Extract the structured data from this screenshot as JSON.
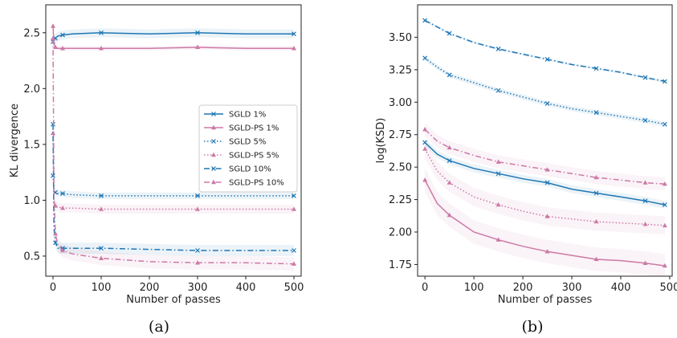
{
  "colors": {
    "blue": "#1f77b4",
    "pink": "#cc79a7"
  },
  "chart_data": [
    {
      "type": "line",
      "caption": "(a)",
      "xlabel": "Number of passes",
      "ylabel": "KL divergence",
      "xlim": [
        -15,
        515
      ],
      "ylim": [
        0.32,
        2.75
      ],
      "xticks": [
        0,
        100,
        200,
        300,
        400,
        500
      ],
      "yticks": [
        0.5,
        1.0,
        1.5,
        2.0,
        2.5
      ],
      "ytick_labels": [
        "0.5",
        "1.0",
        "1.5",
        "2.0",
        "2.5"
      ],
      "legend_position": "center-right",
      "series": [
        {
          "name": "SGLD 1%",
          "color": "blue",
          "dash": "solid",
          "marker": "x",
          "x": [
            0,
            2,
            5,
            10,
            20,
            40,
            100,
            200,
            300,
            400,
            500
          ],
          "y": [
            2.42,
            2.44,
            2.45,
            2.47,
            2.48,
            2.49,
            2.5,
            2.49,
            2.5,
            2.49,
            2.49
          ],
          "band": 0.04
        },
        {
          "name": "SGLD-PS 1%",
          "color": "pink",
          "dash": "solid",
          "marker": "^",
          "x": [
            0,
            2,
            5,
            10,
            20,
            40,
            100,
            200,
            300,
            400,
            500
          ],
          "y": [
            2.56,
            2.4,
            2.37,
            2.36,
            2.36,
            2.36,
            2.36,
            2.36,
            2.37,
            2.36,
            2.36
          ],
          "band": 0.02
        },
        {
          "name": "SGLD 5%",
          "color": "blue",
          "dash": "dotted",
          "marker": "x",
          "x": [
            0,
            2,
            5,
            10,
            20,
            40,
            100,
            200,
            300,
            400,
            500
          ],
          "y": [
            1.22,
            1.1,
            1.07,
            1.06,
            1.06,
            1.05,
            1.04,
            1.04,
            1.04,
            1.04,
            1.04
          ],
          "band": 0.03
        },
        {
          "name": "SGLD-PS 5%",
          "color": "pink",
          "dash": "dotted",
          "marker": "^",
          "x": [
            0,
            2,
            5,
            10,
            20,
            40,
            100,
            200,
            300,
            400,
            500
          ],
          "y": [
            1.6,
            1.0,
            0.95,
            0.94,
            0.93,
            0.93,
            0.92,
            0.92,
            0.92,
            0.92,
            0.92
          ],
          "band": 0.04
        },
        {
          "name": "SGLD 10%",
          "color": "blue",
          "dash": "dashdot",
          "marker": "x",
          "x": [
            0,
            2,
            5,
            10,
            20,
            40,
            100,
            200,
            300,
            400,
            500
          ],
          "y": [
            1.68,
            0.75,
            0.62,
            0.57,
            0.57,
            0.57,
            0.57,
            0.56,
            0.55,
            0.55,
            0.55
          ],
          "band": 0.05
        },
        {
          "name": "SGLD-PS 10%",
          "color": "pink",
          "dash": "dashdot",
          "marker": "^",
          "x": [
            0,
            2,
            5,
            10,
            20,
            40,
            100,
            200,
            300,
            400,
            500
          ],
          "y": [
            2.45,
            1.05,
            0.7,
            0.6,
            0.55,
            0.52,
            0.48,
            0.45,
            0.44,
            0.44,
            0.43
          ],
          "band": 0.06
        }
      ]
    },
    {
      "type": "line",
      "caption": "(b)",
      "xlabel": "Number of passes",
      "ylabel": "log(KSD)",
      "xlim": [
        -15,
        505
      ],
      "ylim": [
        1.66,
        3.75
      ],
      "xticks": [
        0,
        100,
        200,
        300,
        400,
        500
      ],
      "yticks": [
        1.75,
        2.0,
        2.25,
        2.5,
        2.75,
        3.0,
        3.25,
        3.5
      ],
      "ytick_labels": [
        "1.75",
        "2.00",
        "2.25",
        "2.50",
        "2.75",
        "3.00",
        "3.25",
        "3.50"
      ],
      "series": [
        {
          "name": "SGLD 1%",
          "color": "blue",
          "dash": "solid",
          "marker": "x",
          "x": [
            0,
            25,
            50,
            100,
            150,
            200,
            250,
            300,
            350,
            400,
            450,
            490
          ],
          "y": [
            2.69,
            2.6,
            2.55,
            2.49,
            2.45,
            2.41,
            2.38,
            2.33,
            2.3,
            2.27,
            2.24,
            2.21
          ],
          "band": 0.03
        },
        {
          "name": "SGLD-PS 1%",
          "color": "pink",
          "dash": "solid",
          "marker": "^",
          "x": [
            0,
            25,
            50,
            100,
            150,
            200,
            250,
            300,
            350,
            400,
            450,
            490
          ],
          "y": [
            2.4,
            2.22,
            2.13,
            2.0,
            1.94,
            1.89,
            1.85,
            1.82,
            1.79,
            1.78,
            1.76,
            1.74
          ],
          "band": 0.09
        },
        {
          "name": "SGLD 5%",
          "color": "blue",
          "dash": "dotted",
          "marker": "x",
          "x": [
            0,
            25,
            50,
            100,
            150,
            200,
            250,
            300,
            350,
            400,
            450,
            490
          ],
          "y": [
            3.34,
            3.27,
            3.21,
            3.15,
            3.09,
            3.04,
            2.99,
            2.95,
            2.92,
            2.89,
            2.86,
            2.83
          ],
          "band": 0.02
        },
        {
          "name": "SGLD-PS 5%",
          "color": "pink",
          "dash": "dotted",
          "marker": "^",
          "x": [
            0,
            25,
            50,
            100,
            150,
            200,
            250,
            300,
            350,
            400,
            450,
            490
          ],
          "y": [
            2.64,
            2.47,
            2.38,
            2.27,
            2.21,
            2.16,
            2.12,
            2.1,
            2.08,
            2.07,
            2.06,
            2.05
          ],
          "band": 0.07
        },
        {
          "name": "SGLD 10%",
          "color": "blue",
          "dash": "dashdot",
          "marker": "x",
          "x": [
            0,
            25,
            50,
            100,
            150,
            200,
            250,
            300,
            350,
            400,
            450,
            490
          ],
          "y": [
            3.63,
            3.58,
            3.53,
            3.46,
            3.41,
            3.37,
            3.33,
            3.29,
            3.26,
            3.23,
            3.19,
            3.16
          ],
          "band": 0.01
        },
        {
          "name": "SGLD-PS 10%",
          "color": "pink",
          "dash": "dashdot",
          "marker": "^",
          "x": [
            0,
            25,
            50,
            100,
            150,
            200,
            250,
            300,
            350,
            400,
            450,
            490
          ],
          "y": [
            2.79,
            2.7,
            2.65,
            2.59,
            2.54,
            2.51,
            2.48,
            2.45,
            2.42,
            2.4,
            2.38,
            2.37
          ],
          "band": 0.05
        }
      ]
    }
  ]
}
